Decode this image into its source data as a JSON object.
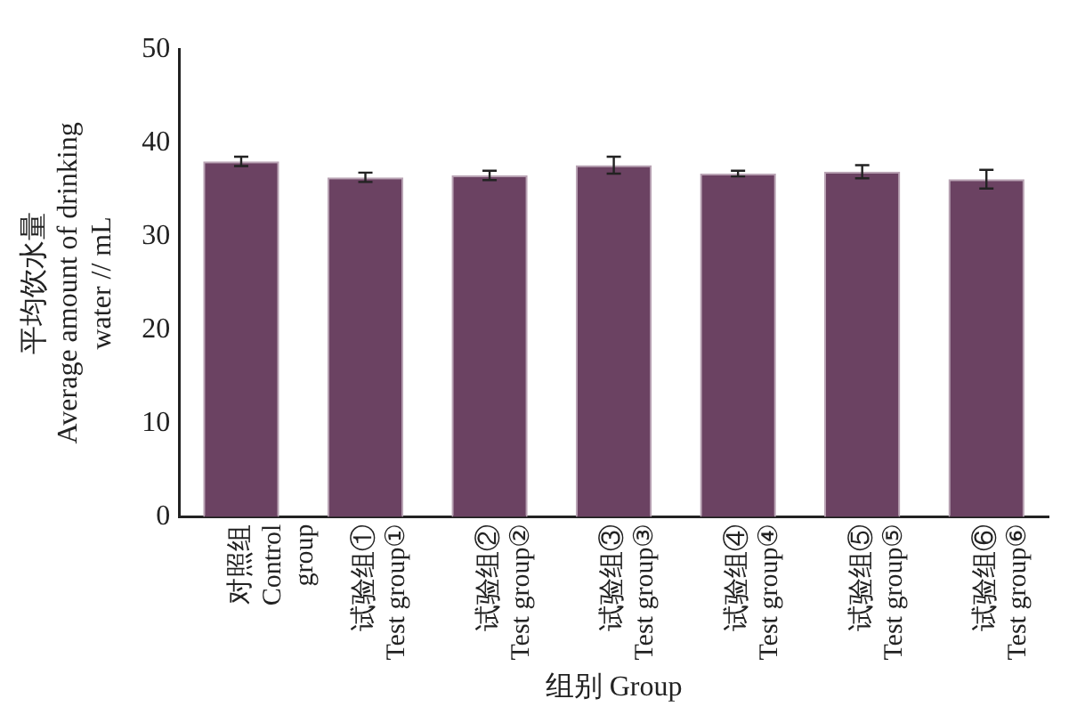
{
  "chart_data": {
    "type": "bar",
    "xlabel": "组别 Group",
    "ylabel": "平均饮水量\nAverage amount of drinking\nwater // mL",
    "categories": [
      "对照组\nControl\ngroup",
      "试验组①\nTest group①",
      "试验组②\nTest group②",
      "试验组③\nTest group③",
      "试验组④\nTest group④",
      "试验组⑤\nTest group⑤",
      "试验组⑥\nTest group⑥"
    ],
    "values": [
      38.0,
      36.3,
      36.5,
      37.6,
      36.7,
      36.9,
      36.1
    ],
    "errors": [
      0.5,
      0.5,
      0.5,
      0.9,
      0.3,
      0.7,
      1.0
    ],
    "color": "#6b4262",
    "ylim": [
      0,
      50
    ],
    "yticks": [
      0,
      10,
      20,
      30,
      40,
      50
    ],
    "grid": false
  }
}
